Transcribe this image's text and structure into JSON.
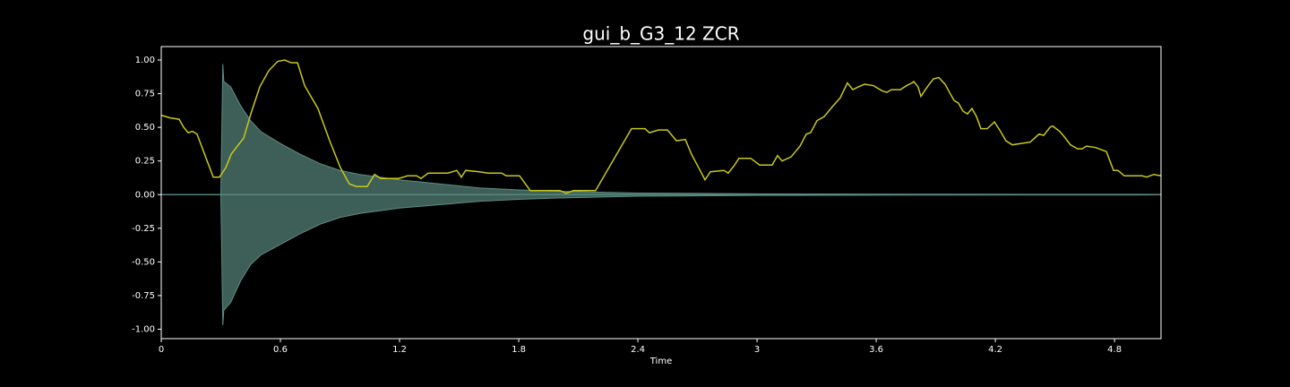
{
  "chart_data": {
    "type": "waveform-zcr",
    "title": "gui_b_G3_12 ZCR",
    "x_label": "Time",
    "xlim": [
      0,
      5.034
    ],
    "ylim": [
      -1.07,
      1.1
    ],
    "xticks": [
      0,
      0.6,
      1.2,
      1.8,
      2.4,
      3,
      3.6,
      4.2,
      4.8
    ],
    "yticks": [
      {
        "value": 1,
        "label": "1.00"
      },
      0.75,
      {
        "value": 0.5,
        "label": "0.50"
      },
      0.25,
      {
        "value": 0,
        "label": "0.00"
      },
      -0.25,
      {
        "value": -0.5,
        "label": "-0.50"
      },
      -0.75,
      {
        "value": -1,
        "label": "-1.00"
      }
    ],
    "waveform": {
      "color": "#3e5f57",
      "edge_color": "#5d8c83",
      "x": [
        0,
        0.3,
        0.31,
        0.315,
        0.35,
        0.4,
        0.45,
        0.5,
        0.6,
        0.7,
        0.8,
        0.9,
        1.0,
        1.2,
        1.4,
        1.6,
        1.8,
        2.0,
        2.4,
        3.0,
        4.0,
        5.034
      ],
      "upper": [
        0,
        0,
        0.97,
        0.84,
        0.8,
        0.66,
        0.55,
        0.47,
        0.38,
        0.3,
        0.23,
        0.18,
        0.15,
        0.11,
        0.08,
        0.05,
        0.035,
        0.025,
        0.012,
        0.006,
        0.003,
        0.002
      ],
      "lower": [
        0,
        0,
        -0.97,
        -0.86,
        -0.8,
        -0.64,
        -0.52,
        -0.45,
        -0.37,
        -0.29,
        -0.22,
        -0.17,
        -0.14,
        -0.1,
        -0.075,
        -0.05,
        -0.035,
        -0.025,
        -0.012,
        -0.006,
        -0.003,
        -0.002
      ]
    },
    "zcr": {
      "color": "#c8c81e",
      "x": [
        0,
        0.045,
        0.09,
        0.113,
        0.135,
        0.158,
        0.18,
        0.226,
        0.262,
        0.293,
        0.325,
        0.352,
        0.383,
        0.415,
        0.451,
        0.496,
        0.541,
        0.586,
        0.622,
        0.654,
        0.686,
        0.722,
        0.789,
        0.848,
        0.902,
        0.947,
        0.983,
        1.037,
        1.074,
        1.105,
        1.195,
        1.24,
        1.286,
        1.308,
        1.344,
        1.443,
        1.488,
        1.511,
        1.533,
        1.601,
        1.646,
        1.714,
        1.737,
        1.804,
        1.858,
        2.007,
        2.039,
        2.075,
        2.187,
        2.368,
        2.436,
        2.458,
        2.503,
        2.549,
        2.594,
        2.639,
        2.67,
        2.706,
        2.738,
        2.765,
        2.833,
        2.855,
        2.887,
        2.909,
        2.968,
        3.013,
        3.076,
        3.103,
        3.126,
        3.171,
        3.216,
        3.248,
        3.27,
        3.302,
        3.338,
        3.383,
        3.419,
        3.455,
        3.482,
        3.509,
        3.541,
        3.586,
        3.631,
        3.654,
        3.676,
        3.721,
        3.753,
        3.78,
        3.789,
        3.811,
        3.825,
        3.857,
        3.888,
        3.915,
        3.947,
        3.969,
        3.992,
        4.014,
        4.037,
        4.06,
        4.082,
        4.105,
        4.127,
        4.159,
        4.195,
        4.226,
        4.253,
        4.285,
        4.33,
        4.375,
        4.42,
        4.443,
        4.475,
        4.488,
        4.524,
        4.547,
        4.578,
        4.614,
        4.637,
        4.659,
        4.705,
        4.759,
        4.795,
        4.817,
        4.849,
        4.939,
        4.962,
        4.998,
        5.034
      ],
      "values": [
        0.59,
        0.57,
        0.56,
        0.5,
        0.46,
        0.47,
        0.45,
        0.27,
        0.13,
        0.13,
        0.2,
        0.3,
        0.36,
        0.42,
        0.6,
        0.8,
        0.92,
        0.99,
        1.0,
        0.98,
        0.98,
        0.81,
        0.64,
        0.4,
        0.2,
        0.08,
        0.06,
        0.06,
        0.15,
        0.12,
        0.12,
        0.14,
        0.14,
        0.12,
        0.16,
        0.16,
        0.18,
        0.13,
        0.18,
        0.17,
        0.16,
        0.16,
        0.14,
        0.14,
        0.03,
        0.03,
        0.01,
        0.03,
        0.03,
        0.49,
        0.49,
        0.46,
        0.48,
        0.48,
        0.4,
        0.41,
        0.3,
        0.2,
        0.11,
        0.17,
        0.18,
        0.16,
        0.22,
        0.27,
        0.27,
        0.22,
        0.22,
        0.29,
        0.25,
        0.28,
        0.36,
        0.45,
        0.46,
        0.55,
        0.58,
        0.66,
        0.72,
        0.83,
        0.78,
        0.8,
        0.82,
        0.81,
        0.77,
        0.76,
        0.78,
        0.78,
        0.81,
        0.83,
        0.84,
        0.8,
        0.73,
        0.8,
        0.86,
        0.87,
        0.82,
        0.76,
        0.7,
        0.68,
        0.62,
        0.6,
        0.64,
        0.58,
        0.49,
        0.49,
        0.54,
        0.47,
        0.4,
        0.37,
        0.38,
        0.39,
        0.45,
        0.44,
        0.5,
        0.51,
        0.47,
        0.43,
        0.37,
        0.34,
        0.34,
        0.36,
        0.35,
        0.32,
        0.18,
        0.18,
        0.14,
        0.14,
        0.13,
        0.15,
        0.14
      ]
    }
  }
}
